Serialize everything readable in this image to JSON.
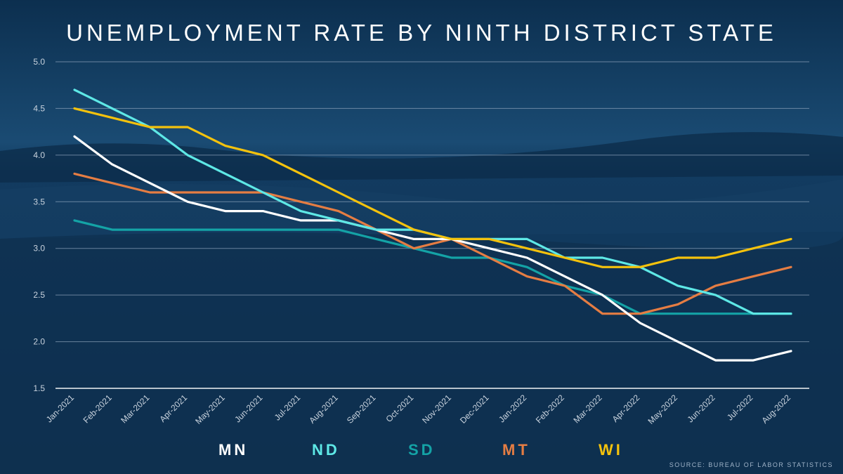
{
  "colors": {
    "background": "#0f3556",
    "grid": "#8ea5bd",
    "MN": "#ffffff",
    "ND": "#5ee8e6",
    "SD": "#14a3a6",
    "MT": "#e57d43",
    "WI": "#f4c20d"
  },
  "chart_data": {
    "type": "line",
    "title": "UNEMPLOYMENT RATE BY NINTH DISTRICT STATE",
    "xlabel": "",
    "ylabel": "",
    "ylim": [
      1.5,
      5.0
    ],
    "yticks": [
      "5.0",
      "4.5",
      "4.0",
      "3.5",
      "3.0",
      "2.5",
      "2.0",
      "1.5"
    ],
    "grid": true,
    "legend_position": "bottom",
    "categories": [
      "Jan-2021",
      "Feb-2021",
      "Mar-2021",
      "Apr-2021",
      "May-2021",
      "Jun-2021",
      "Jul-2021",
      "Aug-2021",
      "Sep-2021",
      "Oct-2021",
      "Nov-2021",
      "Dec-2021",
      "Jan-2022",
      "Feb-2022",
      "Mar-2022",
      "Apr-2022",
      "May-2022",
      "Jun-2022",
      "Jul-2022",
      "Aug-2022"
    ],
    "series": [
      {
        "name": "MN",
        "values": [
          4.2,
          3.9,
          3.7,
          3.5,
          3.4,
          3.4,
          3.3,
          3.3,
          3.2,
          3.1,
          3.1,
          3.0,
          2.9,
          2.7,
          2.5,
          2.2,
          2.0,
          1.8,
          1.8,
          1.9
        ]
      },
      {
        "name": "ND",
        "values": [
          4.7,
          4.5,
          4.3,
          4.0,
          3.8,
          3.6,
          3.4,
          3.3,
          3.2,
          3.2,
          3.1,
          3.1,
          3.1,
          2.9,
          2.9,
          2.8,
          2.6,
          2.5,
          2.3,
          2.3
        ]
      },
      {
        "name": "SD",
        "values": [
          3.3,
          3.2,
          3.2,
          3.2,
          3.2,
          3.2,
          3.2,
          3.2,
          3.1,
          3.0,
          2.9,
          2.9,
          2.8,
          2.6,
          2.5,
          2.3,
          2.3,
          2.3,
          2.3,
          2.3
        ]
      },
      {
        "name": "MT",
        "values": [
          3.8,
          3.7,
          3.6,
          3.6,
          3.6,
          3.6,
          3.5,
          3.4,
          3.2,
          3.0,
          3.1,
          2.9,
          2.7,
          2.6,
          2.3,
          2.3,
          2.4,
          2.6,
          2.7,
          2.8
        ]
      },
      {
        "name": "WI",
        "values": [
          4.5,
          4.4,
          4.3,
          4.3,
          4.1,
          4.0,
          3.8,
          3.6,
          3.4,
          3.2,
          3.1,
          3.1,
          3.0,
          2.9,
          2.8,
          2.8,
          2.9,
          2.9,
          3.0,
          3.1
        ]
      }
    ]
  },
  "legend": [
    "MN",
    "ND",
    "SD",
    "MT",
    "WI"
  ],
  "source": "SOURCE: BUREAU OF LABOR STATISTICS"
}
